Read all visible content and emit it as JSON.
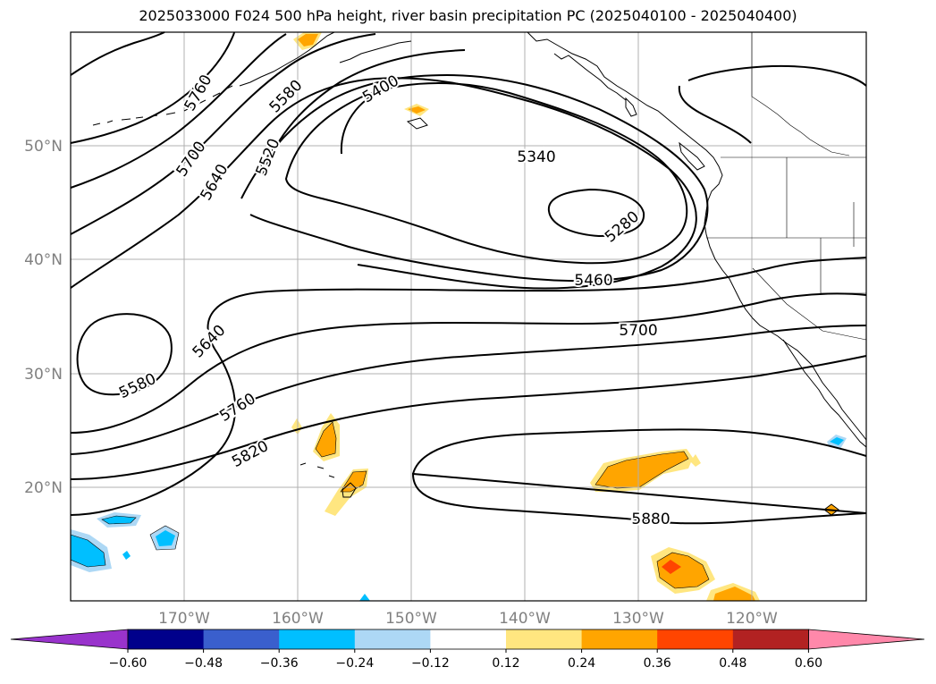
{
  "title": "2025033000 F024 500 hPa height, river basin precipitation PC (2025040100 - 2025040400)",
  "map": {
    "lon_labels": [
      "170°W",
      "160°W",
      "150°W",
      "140°W",
      "130°W",
      "120°W"
    ],
    "lat_labels": [
      "50°N",
      "40°N",
      "30°N",
      "20°N"
    ],
    "lon_range": [
      -180,
      -110
    ],
    "lat_range": [
      10,
      60
    ],
    "grid_lons": [
      -170,
      -160,
      -150,
      -140,
      -130,
      -120
    ],
    "grid_lats": [
      50,
      40,
      30,
      20
    ],
    "contour_labels": [
      "5760",
      "5700",
      "5640",
      "5580",
      "5520",
      "5400",
      "5340",
      "5280",
      "5460",
      "5700",
      "5640",
      "5580",
      "5760",
      "5820",
      "5880"
    ],
    "grid_color": "#b0b0b0",
    "axis_label_color": "#808080"
  },
  "colorbar": {
    "tick_labels": [
      "−0.60",
      "−0.48",
      "−0.36",
      "−0.24",
      "−0.12",
      "0.12",
      "0.24",
      "0.36",
      "0.48",
      "0.60"
    ],
    "colors": [
      "#9933cc",
      "#00008b",
      "#3a5fcd",
      "#00bfff",
      "#add8f5",
      "#ffffff",
      "#ffe680",
      "#ffa500",
      "#ff4500",
      "#b22222",
      "#ff88aa"
    ]
  }
}
